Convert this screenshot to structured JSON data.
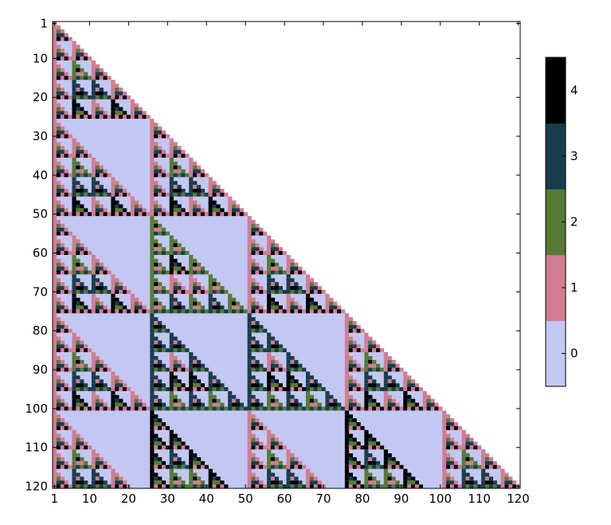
{
  "chart_data": {
    "type": "heatmap",
    "title": "",
    "xlabel": "",
    "ylabel": "",
    "rows": 120,
    "cols": 120,
    "modulus": 5,
    "cell_rule": "Pascal triangle modulo 5, lower triangle (column <= row)",
    "x_ticks": [
      1,
      10,
      20,
      30,
      40,
      50,
      60,
      70,
      80,
      90,
      100,
      110,
      120
    ],
    "y_ticks": [
      1,
      10,
      20,
      30,
      40,
      50,
      60,
      70,
      80,
      90,
      100,
      110,
      120
    ],
    "xlim": [
      1,
      120
    ],
    "ylim": [
      1,
      120
    ],
    "y_axis_inverted": true,
    "colorbar": {
      "values": [
        0,
        1,
        2,
        3,
        4
      ],
      "ticks": [
        "0",
        "1",
        "2",
        "3",
        "4"
      ],
      "colors": [
        "#c2c8f2",
        "#d27c93",
        "#567a33",
        "#173d4d",
        "#000000"
      ]
    },
    "background_color": "#c2c8f2"
  }
}
